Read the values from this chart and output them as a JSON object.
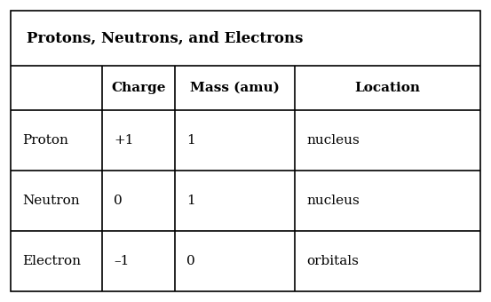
{
  "title": "Protons, Neutrons, and Electrons",
  "col_headers": [
    "",
    "Charge",
    "Mass (amu)",
    "Location"
  ],
  "rows": [
    [
      "Proton",
      "+1",
      "1",
      "nucleus"
    ],
    [
      "Neutron",
      "0",
      "1",
      "nucleus"
    ],
    [
      "Electron",
      "–1",
      "0",
      "orbitals"
    ]
  ],
  "bg_color": "#ffffff",
  "border_color": "#000000",
  "text_color": "#000000",
  "title_fontsize": 12,
  "header_fontsize": 11,
  "cell_fontsize": 11,
  "fig_width": 5.53,
  "fig_height": 3.4
}
